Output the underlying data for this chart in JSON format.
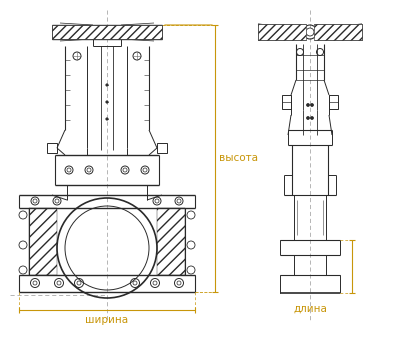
{
  "bg_color": "#ffffff",
  "line_color": "#2a2a2a",
  "dim_color": "#c8960a",
  "fig_width": 4.0,
  "fig_height": 3.46,
  "dpi": 100,
  "labels": {
    "width": "ширина",
    "length": "длина",
    "height": "высота"
  },
  "font_size": 7.5
}
